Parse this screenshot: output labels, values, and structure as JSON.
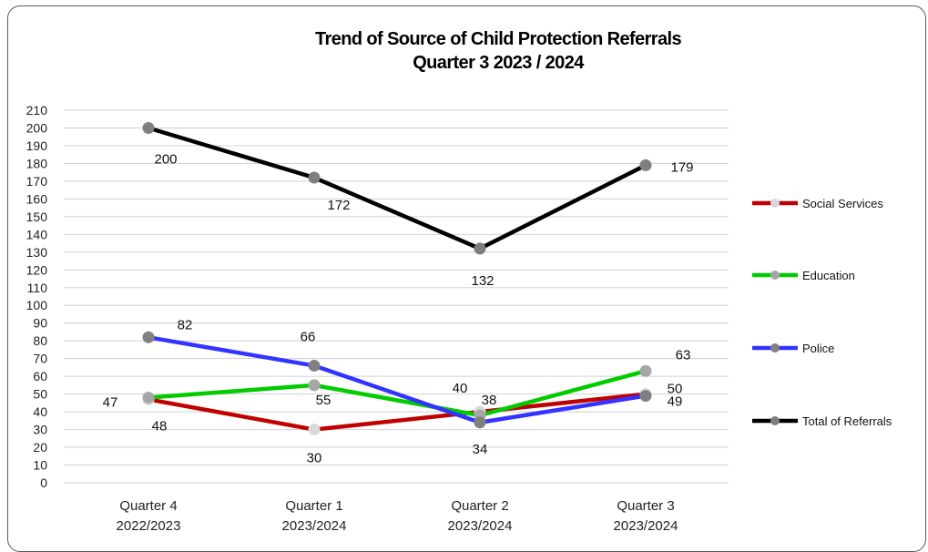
{
  "chart_data": {
    "type": "line",
    "title": "Trend of Source of Child Protection Referrals",
    "subtitle": "Quarter 3 2023 / 2024",
    "categories": [
      [
        "Quarter 4",
        "2022/2023"
      ],
      [
        "Quarter 1",
        "2023/2024"
      ],
      [
        "Quarter 2",
        "2023/2024"
      ],
      [
        "Quarter 3",
        "2023/2024"
      ]
    ],
    "ylim": [
      0,
      210
    ],
    "yticks": [
      0,
      10,
      20,
      30,
      40,
      50,
      60,
      70,
      80,
      90,
      100,
      110,
      120,
      130,
      140,
      150,
      160,
      170,
      180,
      190,
      200,
      210
    ],
    "grid": true,
    "legend_position": "right",
    "series": [
      {
        "name": "Social Services",
        "values": [
          47,
          30,
          40,
          50
        ],
        "color": "#c00000",
        "marker": "#d9d9d9"
      },
      {
        "name": "Education",
        "values": [
          48,
          55,
          38,
          63
        ],
        "color": "#00cc00",
        "marker": "#a6a6a6"
      },
      {
        "name": "Police",
        "values": [
          82,
          66,
          34,
          49
        ],
        "color": "#3333ff",
        "marker": "#808080"
      },
      {
        "name": "Total of Referrals",
        "values": [
          200,
          172,
          132,
          179
        ],
        "color": "#000000",
        "marker": "#7f7f7f"
      }
    ]
  }
}
